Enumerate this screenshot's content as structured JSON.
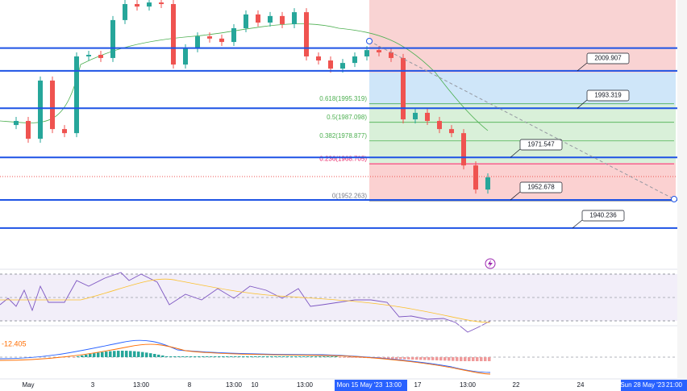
{
  "chart_data": {
    "type": "candlestick",
    "ylim": [
      1923.4,
      2041.3
    ],
    "up_color": "#26a69a",
    "down_color": "#ef5350",
    "values": [
      1985.9,
      1987.7,
      1979.8,
      2005.6,
      1984.1,
      1982.3,
      2016.3,
      2017.0,
      2015.6,
      2032.4,
      2039.5,
      2038.4,
      2040.2,
      2039.5,
      2012.7,
      2019.9,
      2025.2,
      2024.2,
      2022.7,
      2028.8,
      2034.9,
      2031.3,
      2034.2,
      2030.6,
      2035.9,
      2016.3,
      2014.5,
      2010.9,
      2013.4,
      2016.3,
      2019.1,
      2018.1,
      2015.6,
      1988.4,
      1991.3,
      1987.7,
      1984.1,
      1982.3,
      1968.0,
      1957.3,
      1962.7
    ],
    "levels": {
      "color": "#1e53e5",
      "values": [
        2020.0,
        2009.907,
        1993.319,
        1971.547,
        1952.678,
        1940.236
      ],
      "value_labels": [
        null,
        "2009.907",
        "1993.319",
        "1971.547",
        "1952.678",
        "1940.236"
      ]
    },
    "fib": [
      {
        "ratio": 0.618,
        "price": 1995.319,
        "label": "0.618(1995.319)",
        "color": "#4caf50"
      },
      {
        "ratio": 0.5,
        "price": 1987.098,
        "label": "0.5(1987.098)",
        "color": "#4caf50"
      },
      {
        "ratio": 0.382,
        "price": 1978.877,
        "label": "0.382(1978.877)",
        "color": "#4caf50"
      },
      {
        "ratio": 0.236,
        "price": 1968.705,
        "label": "0.236(1968.705)",
        "color": "#e91e63"
      },
      {
        "ratio": 0,
        "price": 1952.263,
        "label": "0(1952.263)",
        "color": "#787b86"
      }
    ],
    "macd_label": "-12.405",
    "x_labels": [
      "May",
      "3",
      "13:00",
      "8",
      "13:00",
      "10",
      "13:00",
      "Mon 15 May '23",
      "13:00",
      "17",
      "13:00",
      "22",
      "24",
      "Sun 28 May '23",
      "21:00"
    ]
  }
}
